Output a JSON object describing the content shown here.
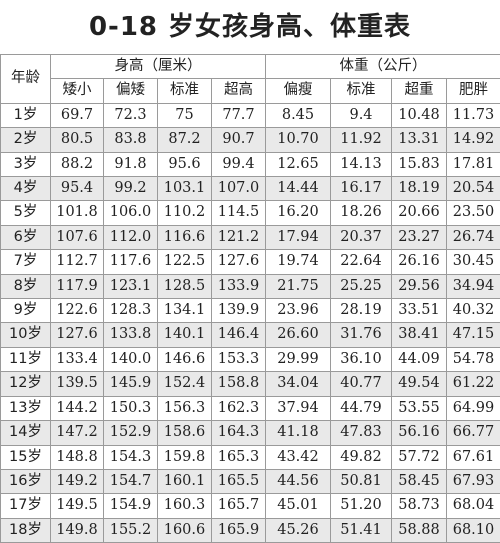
{
  "title": "0-18 岁女孩身高、体重表",
  "header": {
    "age": "年龄",
    "height_group": "身高（厘米）",
    "weight_group": "体重（公斤）",
    "height_cols": [
      "矮小",
      "偏矮",
      "标准",
      "超高"
    ],
    "weight_cols": [
      "偏瘦",
      "标准",
      "超重",
      "肥胖"
    ]
  },
  "rows": [
    {
      "age": "1岁",
      "h": [
        "69.7",
        "72.3",
        "75",
        "77.7"
      ],
      "w": [
        "8.45",
        "9.4",
        "10.48",
        "11.73"
      ]
    },
    {
      "age": "2岁",
      "h": [
        "80.5",
        "83.8",
        "87.2",
        "90.7"
      ],
      "w": [
        "10.70",
        "11.92",
        "13.31",
        "14.92"
      ]
    },
    {
      "age": "3岁",
      "h": [
        "88.2",
        "91.8",
        "95.6",
        "99.4"
      ],
      "w": [
        "12.65",
        "14.13",
        "15.83",
        "17.81"
      ]
    },
    {
      "age": "4岁",
      "h": [
        "95.4",
        "99.2",
        "103.1",
        "107.0"
      ],
      "w": [
        "14.44",
        "16.17",
        "18.19",
        "20.54"
      ]
    },
    {
      "age": "5岁",
      "h": [
        "101.8",
        "106.0",
        "110.2",
        "114.5"
      ],
      "w": [
        "16.20",
        "18.26",
        "20.66",
        "23.50"
      ]
    },
    {
      "age": "6岁",
      "h": [
        "107.6",
        "112.0",
        "116.6",
        "121.2"
      ],
      "w": [
        "17.94",
        "20.37",
        "23.27",
        "26.74"
      ]
    },
    {
      "age": "7岁",
      "h": [
        "112.7",
        "117.6",
        "122.5",
        "127.6"
      ],
      "w": [
        "19.74",
        "22.64",
        "26.16",
        "30.45"
      ]
    },
    {
      "age": "8岁",
      "h": [
        "117.9",
        "123.1",
        "128.5",
        "133.9"
      ],
      "w": [
        "21.75",
        "25.25",
        "29.56",
        "34.94"
      ]
    },
    {
      "age": "9岁",
      "h": [
        "122.6",
        "128.3",
        "134.1",
        "139.9"
      ],
      "w": [
        "23.96",
        "28.19",
        "33.51",
        "40.32"
      ]
    },
    {
      "age": "10岁",
      "h": [
        "127.6",
        "133.8",
        "140.1",
        "146.4"
      ],
      "w": [
        "26.60",
        "31.76",
        "38.41",
        "47.15"
      ]
    },
    {
      "age": "11岁",
      "h": [
        "133.4",
        "140.0",
        "146.6",
        "153.3"
      ],
      "w": [
        "29.99",
        "36.10",
        "44.09",
        "54.78"
      ]
    },
    {
      "age": "12岁",
      "h": [
        "139.5",
        "145.9",
        "152.4",
        "158.8"
      ],
      "w": [
        "34.04",
        "40.77",
        "49.54",
        "61.22"
      ]
    },
    {
      "age": "13岁",
      "h": [
        "144.2",
        "150.3",
        "156.3",
        "162.3"
      ],
      "w": [
        "37.94",
        "44.79",
        "53.55",
        "64.99"
      ]
    },
    {
      "age": "14岁",
      "h": [
        "147.2",
        "152.9",
        "158.6",
        "164.3"
      ],
      "w": [
        "41.18",
        "47.83",
        "56.16",
        "66.77"
      ]
    },
    {
      "age": "15岁",
      "h": [
        "148.8",
        "154.3",
        "159.8",
        "165.3"
      ],
      "w": [
        "43.42",
        "49.82",
        "57.72",
        "67.61"
      ]
    },
    {
      "age": "16岁",
      "h": [
        "149.2",
        "154.7",
        "160.1",
        "165.5"
      ],
      "w": [
        "44.56",
        "50.81",
        "58.45",
        "67.93"
      ]
    },
    {
      "age": "17岁",
      "h": [
        "149.5",
        "154.9",
        "160.3",
        "165.7"
      ],
      "w": [
        "45.01",
        "51.20",
        "58.73",
        "68.04"
      ]
    },
    {
      "age": "18岁",
      "h": [
        "149.8",
        "155.2",
        "160.6",
        "165.9"
      ],
      "w": [
        "45.26",
        "51.41",
        "58.88",
        "68.10"
      ]
    }
  ]
}
